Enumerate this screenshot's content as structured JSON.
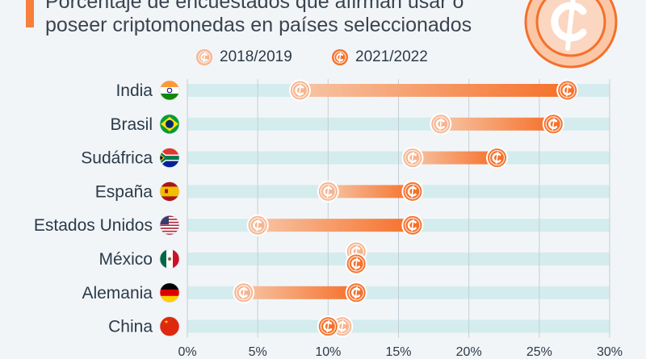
{
  "header": {
    "subtitle_line1": "Porcentaje de encuestados que afirman usar o",
    "subtitle_line2": "poseer criptomonedas en países seleccionados",
    "logo_icon": "crypto-coin-icon"
  },
  "colors": {
    "light_orange": "#f7b48f",
    "dark_orange": "#f5702a",
    "track": "#d4ecee",
    "accent": "#f77f3a"
  },
  "chart_data": {
    "type": "dumbbell",
    "title": "Porcentaje de encuestados que afirman usar o poseer criptomonedas en países seleccionados",
    "series": [
      {
        "name": "2018/2019",
        "values": [
          8,
          18,
          16,
          10,
          5,
          12,
          4,
          11
        ]
      },
      {
        "name": "2021/2022",
        "values": [
          27,
          26,
          22,
          16,
          16,
          12,
          12,
          10
        ]
      }
    ],
    "categories": [
      "India",
      "Brasil",
      "Sudáfrica",
      "España",
      "Estados Unidos",
      "México",
      "Alemania",
      "China"
    ],
    "flags": [
      "india-flag-icon",
      "brazil-flag-icon",
      "south-africa-flag-icon",
      "spain-flag-icon",
      "usa-flag-icon",
      "mexico-flag-icon",
      "germany-flag-icon",
      "china-flag-icon"
    ],
    "xlim": [
      0,
      30
    ],
    "xticks": [
      0,
      5,
      10,
      15,
      20,
      25,
      30
    ],
    "xtick_labels": [
      "0%",
      "5%",
      "10%",
      "15%",
      "20%",
      "25%",
      "30%"
    ],
    "grid": true,
    "legend_position": "top-center"
  }
}
